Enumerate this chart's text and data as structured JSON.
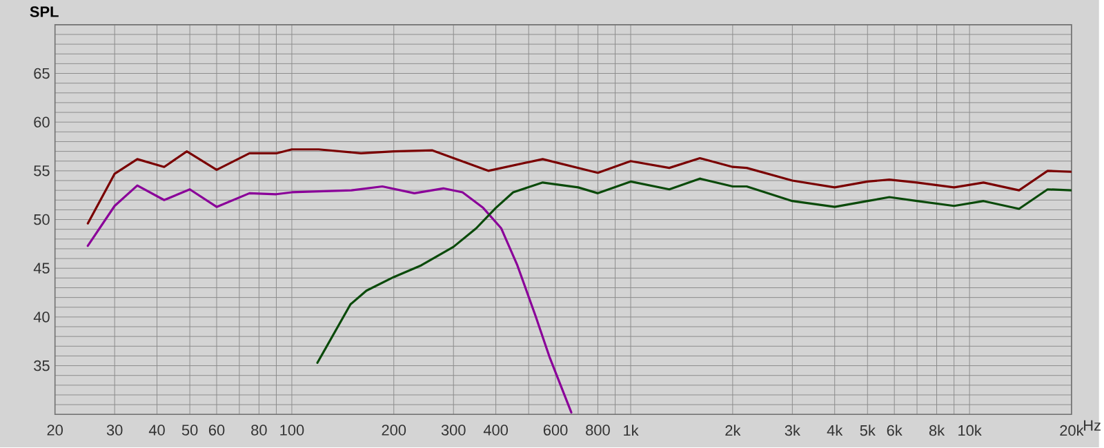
{
  "chart_data": {
    "type": "line",
    "ylabel": "SPL",
    "log": "x",
    "grid": true,
    "line_style": "solid",
    "xlim": [
      20,
      20000
    ],
    "ylim": [
      30,
      70
    ],
    "xticks": [
      20,
      30,
      40,
      50,
      60,
      {
        "value": 70,
        "label": null
      },
      80,
      {
        "value": 90,
        "label": null
      },
      100,
      200,
      300,
      400,
      {
        "value": 500,
        "label": null
      },
      600,
      {
        "value": 700,
        "label": null
      },
      800,
      {
        "value": 900,
        "label": null
      },
      {
        "value": 1000,
        "label": "1k"
      },
      {
        "value": 2000,
        "label": "2k"
      },
      {
        "value": 3000,
        "label": "3k"
      },
      {
        "value": 4000,
        "label": "4k"
      },
      {
        "value": 5000,
        "label": "5k"
      },
      {
        "value": 6000,
        "label": "6k"
      },
      {
        "value": 7000,
        "label": null
      },
      {
        "value": 8000,
        "label": "8k"
      },
      {
        "value": 9000,
        "label": null
      },
      {
        "value": 10000,
        "label": "10k"
      },
      {
        "value": 20000,
        "label": "20k"
      }
    ],
    "xlabel": "Hz",
    "yticks": [
      {
        "value": 30,
        "label": null
      },
      {
        "value": 31,
        "label": null
      },
      {
        "value": 32,
        "label": null
      },
      {
        "value": 33,
        "label": null
      },
      {
        "value": 34,
        "label": null
      },
      35,
      {
        "value": 36,
        "label": null
      },
      {
        "value": 37,
        "label": null
      },
      {
        "value": 38,
        "label": null
      },
      {
        "value": 39,
        "label": null
      },
      40,
      {
        "value": 41,
        "label": null
      },
      {
        "value": 42,
        "label": null
      },
      {
        "value": 43,
        "label": null
      },
      {
        "value": 44,
        "label": null
      },
      45,
      {
        "value": 46,
        "label": null
      },
      {
        "value": 47,
        "label": null
      },
      {
        "value": 48,
        "label": null
      },
      {
        "value": 49,
        "label": null
      },
      50,
      {
        "value": 51,
        "label": null
      },
      {
        "value": 52,
        "label": null
      },
      {
        "value": 53,
        "label": null
      },
      {
        "value": 54,
        "label": null
      },
      55,
      {
        "value": 56,
        "label": null
      },
      {
        "value": 57,
        "label": null
      },
      {
        "value": 58,
        "label": null
      },
      {
        "value": 59,
        "label": null
      },
      60,
      {
        "value": 61,
        "label": null
      },
      {
        "value": 62,
        "label": null
      },
      {
        "value": 63,
        "label": null
      },
      {
        "value": 64,
        "label": null
      },
      65,
      {
        "value": 66,
        "label": null
      },
      {
        "value": 67,
        "label": null
      },
      {
        "value": 68,
        "label": null
      },
      {
        "value": 69,
        "label": null
      },
      {
        "value": 70,
        "label": null
      }
    ],
    "series": [
      {
        "color": "#7a0000",
        "x": [
          25,
          30,
          35,
          42,
          49,
          60,
          75,
          90,
          100,
          120,
          160,
          200,
          260,
          380,
          550,
          800,
          1000,
          1300,
          1600,
          2000,
          2200,
          3000,
          4000,
          5000,
          5800,
          7000,
          9000,
          11000,
          14000,
          17000,
          20000
        ],
        "values": [
          49.6,
          54.7,
          56.2,
          55.4,
          57.0,
          55.1,
          56.8,
          56.8,
          57.2,
          57.2,
          56.8,
          57.0,
          57.1,
          55.0,
          56.2,
          54.8,
          56.0,
          55.3,
          56.3,
          55.4,
          55.3,
          54.0,
          53.3,
          53.9,
          54.1,
          53.8,
          53.3,
          53.8,
          53.0,
          55.0,
          54.9
        ]
      },
      {
        "color": "#8a0099",
        "x": [
          25,
          30,
          35,
          42,
          50,
          60,
          75,
          90,
          100,
          150,
          185,
          230,
          280,
          319,
          367,
          415,
          463,
          524,
          576,
          668
        ],
        "values": [
          47.3,
          51.4,
          53.5,
          52.0,
          53.1,
          51.3,
          52.7,
          52.6,
          52.8,
          53.0,
          53.4,
          52.7,
          53.2,
          52.8,
          51.2,
          49.1,
          45.3,
          40.1,
          35.9,
          30.2
        ]
      },
      {
        "color": "#0a4a0a",
        "x": [
          119,
          149,
          166,
          200,
          241,
          300,
          350,
          400,
          450,
          550,
          700,
          800,
          1000,
          1300,
          1600,
          2000,
          2200,
          3000,
          4000,
          5000,
          5800,
          7000,
          9000,
          11000,
          14000,
          17000,
          20000
        ],
        "values": [
          35.3,
          41.3,
          42.7,
          44.1,
          45.3,
          47.2,
          49.1,
          51.2,
          52.8,
          53.8,
          53.3,
          52.7,
          53.9,
          53.1,
          54.2,
          53.4,
          53.4,
          51.9,
          51.3,
          51.9,
          52.3,
          51.9,
          51.4,
          51.9,
          51.1,
          53.1,
          53.0
        ]
      }
    ]
  }
}
